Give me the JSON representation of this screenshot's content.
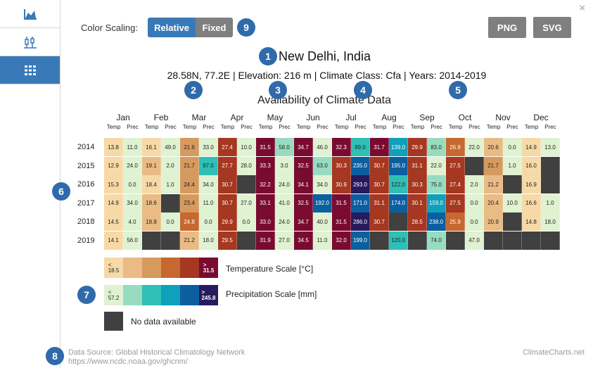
{
  "sidebar": {
    "items": [
      {
        "name": "line-chart-icon",
        "active": false
      },
      {
        "name": "boxplot-icon",
        "active": false
      },
      {
        "name": "table-grid-icon",
        "active": true
      }
    ]
  },
  "close_label": "×",
  "toolbar": {
    "color_scaling_label": "Color Scaling:",
    "relative_label": "Relative",
    "fixed_label": "Fixed",
    "png_label": "PNG",
    "svg_label": "SVG"
  },
  "badges": [
    "1",
    "2",
    "3",
    "4",
    "5",
    "6",
    "7",
    "8",
    "9"
  ],
  "station": {
    "title": "New Delhi, India",
    "subtitle": "28.58N, 77.2E | Elevation: 216 m | Climate Class: Cfa | Years: 2014-2019"
  },
  "chart_data": {
    "type": "heatmap",
    "title": "Availability of Climate Data",
    "months": [
      "Jan",
      "Feb",
      "Mar",
      "Apr",
      "May",
      "Jun",
      "Jul",
      "Aug",
      "Sep",
      "Oct",
      "Nov",
      "Dec"
    ],
    "sub_headers": [
      "Temp",
      "Prec"
    ],
    "years": [
      "2014",
      "2015",
      "2016",
      "2017",
      "2018",
      "2019"
    ],
    "rows": [
      [
        [
          "13.8",
          "11.0"
        ],
        [
          "16.1",
          "49.0"
        ],
        [
          "21.6",
          "33.0"
        ],
        [
          "27.4",
          "10.0"
        ],
        [
          "31.5",
          "58.0"
        ],
        [
          "34.7",
          "46.0"
        ],
        [
          "32.3",
          "99.0"
        ],
        [
          "31.7",
          "139.0"
        ],
        [
          "29.9",
          "83.0"
        ],
        [
          "26.9",
          "22.0"
        ],
        [
          "20.6",
          "0.0"
        ],
        [
          "14.9",
          "13.0"
        ]
      ],
      [
        [
          "12.9",
          "24.0"
        ],
        [
          "19.1",
          "2.0"
        ],
        [
          "21.7",
          "97.0"
        ],
        [
          "27.7",
          "28.0"
        ],
        [
          "33.3",
          "3.0"
        ],
        [
          "32.5",
          "63.0"
        ],
        [
          "30.3",
          "235.0"
        ],
        [
          "30.7",
          "195.0"
        ],
        [
          "31.1",
          "22.0"
        ],
        [
          "27.5",
          null
        ],
        [
          "21.7",
          "1.0"
        ],
        [
          "16.0",
          null
        ]
      ],
      [
        [
          "15.3",
          "0.0"
        ],
        [
          "18.4",
          "1.0"
        ],
        [
          "24.4",
          "34.0"
        ],
        [
          "30.7",
          null
        ],
        [
          "32.2",
          "24.0"
        ],
        [
          "34.1",
          "34.0"
        ],
        [
          "30.9",
          "293.0"
        ],
        [
          "30.7",
          "122.0"
        ],
        [
          "30.3",
          "75.0"
        ],
        [
          "27.4",
          "2.0"
        ],
        [
          "21.2",
          null
        ],
        [
          "16.9",
          null
        ]
      ],
      [
        [
          "14.9",
          "34.0"
        ],
        [
          "18.6",
          null
        ],
        [
          "23.4",
          "11.0"
        ],
        [
          "30.7",
          "27.0"
        ],
        [
          "33.1",
          "41.0"
        ],
        [
          "32.5",
          "192.0"
        ],
        [
          "31.5",
          "171.0"
        ],
        [
          "31.1",
          "174.0"
        ],
        [
          "30.1",
          "159.0"
        ],
        [
          "27.5",
          "0.0"
        ],
        [
          "20.4",
          "10.0"
        ],
        [
          "16.6",
          "1.0"
        ]
      ],
      [
        [
          "14.5",
          "4.0"
        ],
        [
          "18.8",
          "0.0"
        ],
        [
          "24.8",
          "0.0"
        ],
        [
          "29.9",
          "0.0"
        ],
        [
          "33.0",
          "24.0"
        ],
        [
          "34.7",
          "40.0"
        ],
        [
          "31.5",
          "286.0"
        ],
        [
          "30.7",
          null
        ],
        [
          "28.5",
          "238.0"
        ],
        [
          "25.9",
          "0.0"
        ],
        [
          "20.9",
          null
        ],
        [
          "14.8",
          "18.0"
        ]
      ],
      [
        [
          "14.1",
          "56.0"
        ],
        [
          null,
          null
        ],
        [
          "21.2",
          "18.0"
        ],
        [
          "29.5",
          null
        ],
        [
          "31.9",
          "27.0"
        ],
        [
          "34.5",
          "11.0"
        ],
        [
          "32.0",
          "199.0"
        ],
        [
          null,
          "120.0"
        ],
        [
          null,
          "74.0"
        ],
        [
          null,
          "47.0"
        ],
        [
          null,
          null
        ],
        [
          null,
          null
        ]
      ]
    ],
    "temperature_scale": {
      "label": "Temperature Scale [°C]",
      "min_label": "<\n18.5",
      "max_label": ">\n31.5",
      "colors": [
        "#f6d9a6",
        "#eabb84",
        "#d69a5f",
        "#c6682f",
        "#a63720",
        "#7a0b30"
      ]
    },
    "precipitation_scale": {
      "label": "Precipitation Scale [mm]",
      "min_label": "<\n57.2",
      "max_label": ">\n245.8",
      "colors": [
        "#dff2d2",
        "#97dcc0",
        "#2fbfb5",
        "#0fa0bb",
        "#0b5f9f",
        "#271a5e"
      ]
    },
    "no_data": {
      "label": "No data available",
      "color": "#404040"
    }
  },
  "footer": {
    "source_line1": "Data Source: Global Historical Climatology Network",
    "source_line2": "https://www.ncdc.noaa.gov/ghcnm/",
    "credit": "ClimateCharts.net"
  }
}
